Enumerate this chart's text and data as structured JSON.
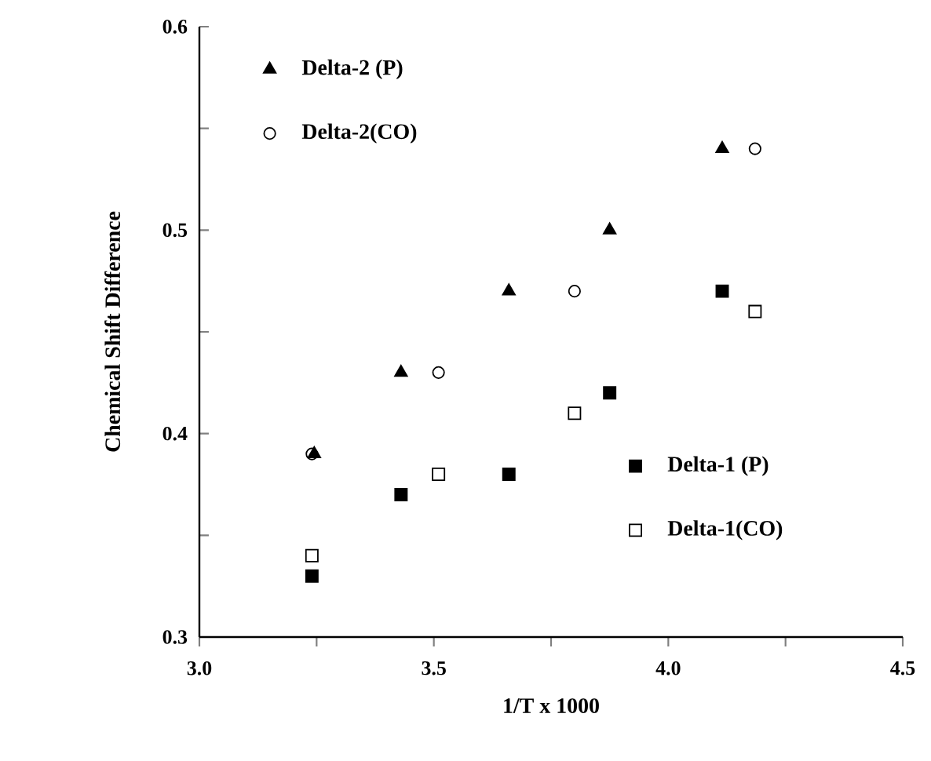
{
  "chart_data": {
    "type": "scatter",
    "xlabel": "1/T  x  1000",
    "ylabel": "Chemical  Shift  Difference",
    "xlim": [
      3.0,
      4.5
    ],
    "ylim": [
      0.3,
      0.6
    ],
    "xticks": [
      {
        "value": 3.0,
        "label": "3.0"
      },
      {
        "value": 3.25,
        "label": null
      },
      {
        "value": 3.5,
        "label": "3.5"
      },
      {
        "value": 3.75,
        "label": null
      },
      {
        "value": 4.0,
        "label": "4.0"
      },
      {
        "value": 4.25,
        "label": null
      },
      {
        "value": 4.5,
        "label": "4.5"
      }
    ],
    "yticks": [
      0.3,
      {
        "value": 0.35,
        "label": null
      },
      0.4,
      {
        "value": 0.45,
        "label": null
      },
      0.5,
      {
        "value": 0.55,
        "label": null
      },
      0.6
    ],
    "legend": "top left",
    "grid": false,
    "series": [
      {
        "name": "Delta-2 (P)",
        "color": "#000000",
        "marker": "triangle",
        "x": [
          3.245,
          3.43,
          3.66,
          3.875,
          4.115
        ],
        "values": [
          0.39,
          0.43,
          0.47,
          0.5,
          0.54
        ]
      },
      {
        "name": "Delta-2(CO)",
        "color": "#000000",
        "marker": "circle",
        "x": [
          3.24,
          3.51,
          3.8,
          4.185
        ],
        "values": [
          0.39,
          0.43,
          0.47,
          0.54
        ]
      },
      {
        "name": "Delta-1 (P)",
        "color": "#000000",
        "marker": "square",
        "x": [
          3.24,
          3.43,
          3.66,
          3.875,
          4.115
        ],
        "values": [
          0.33,
          0.37,
          0.38,
          0.42,
          0.47
        ]
      },
      {
        "name": "Delta-1(CO)",
        "color": "#000000",
        "marker": "square",
        "x": [
          3.24,
          3.51,
          3.8,
          4.185
        ],
        "values": [
          0.34,
          0.38,
          0.41,
          0.46
        ]
      }
    ]
  }
}
